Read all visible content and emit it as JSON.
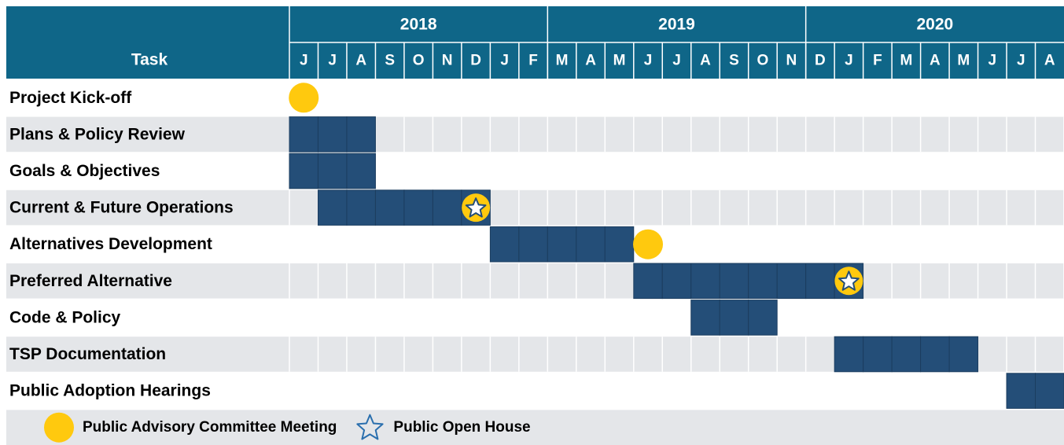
{
  "header": {
    "task_label": "Task",
    "years": [
      {
        "label": "2018",
        "span": 9
      },
      {
        "label": "2019",
        "span": 9
      },
      {
        "label": "2020",
        "span": 9
      }
    ],
    "months": [
      "J",
      "J",
      "A",
      "S",
      "O",
      "N",
      "D",
      "J",
      "F",
      "M",
      "A",
      "M",
      "J",
      "J",
      "A",
      "S",
      "O",
      "N",
      "D",
      "J",
      "F",
      "M",
      "A",
      "M",
      "J",
      "J",
      "A"
    ]
  },
  "tasks": [
    {
      "label": "Project Kick-off",
      "milestone": "circle",
      "milestone_month": 0
    },
    {
      "label": "Plans & Policy Review",
      "start": 0,
      "end": 2
    },
    {
      "label": "Goals & Objectives",
      "start": 0,
      "end": 2
    },
    {
      "label": "Current & Future Operations",
      "start": 1,
      "end": 6,
      "milestone": "star",
      "milestone_month": 6
    },
    {
      "label": "Alternatives Development",
      "start": 7,
      "end": 11,
      "milestone": "circle",
      "milestone_month": 12
    },
    {
      "label": "Preferred Alternative",
      "start": 12,
      "end": 19,
      "milestone": "star",
      "milestone_month": 19
    },
    {
      "label": "Code & Policy",
      "start": 14,
      "end": 16
    },
    {
      "label": "TSP Documentation",
      "start": 19,
      "end": 23
    },
    {
      "label": "Public Adoption Hearings",
      "start": 25,
      "end": 26
    }
  ],
  "legend": [
    {
      "symbol": "circle",
      "label": "Public Advisory Committee Meeting"
    },
    {
      "symbol": "star",
      "label": "Public Open House"
    }
  ]
}
